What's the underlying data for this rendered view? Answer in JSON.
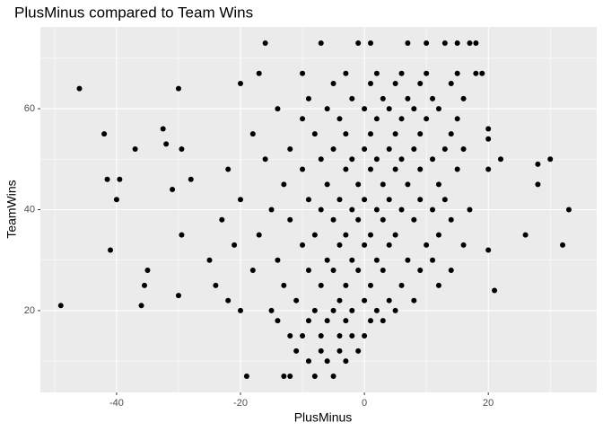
{
  "chart_data": {
    "type": "scatter",
    "title": "PlusMinus compared to Team Wins",
    "x_label": "PlusMinus",
    "y_label": "TeamWins",
    "color": "#000000",
    "xlim": [
      -52.3,
      37.5
    ],
    "ylim": [
      3.8,
      76.2
    ],
    "xticks": [
      -40,
      -20,
      0,
      20
    ],
    "yticks": [
      20,
      40,
      60
    ],
    "x_minor_breaks": [
      -50,
      -30,
      -10,
      10,
      30
    ],
    "y_minor_breaks": [
      10,
      30,
      50,
      70
    ],
    "grid": true,
    "panel_color": "#ebebeb",
    "x": [
      -49,
      -46,
      -42,
      -41.5,
      -41,
      -40,
      -39.5,
      -37,
      -36,
      -35.5,
      -35,
      -32.5,
      -32,
      -31,
      -30,
      -30,
      -29.5,
      -29.5,
      -28,
      -16,
      -7,
      -1,
      1,
      7,
      10,
      13,
      15,
      17,
      18,
      19,
      20,
      20,
      20,
      20,
      22,
      21,
      26,
      28,
      28,
      30,
      32,
      33,
      -13,
      -12,
      -8,
      -5,
      -19,
      -10,
      -7,
      -4,
      -2,
      0,
      -12,
      -9,
      -6,
      -3,
      1,
      -14,
      3,
      -20,
      -8,
      -5,
      -2,
      2,
      5,
      -15,
      -22,
      -11,
      -4,
      0,
      4,
      8,
      -24,
      -13,
      -7,
      -3,
      1,
      6,
      12,
      -18,
      -9,
      -5,
      -1,
      3,
      9,
      14,
      -25,
      -14,
      -6,
      -2,
      2,
      7,
      11,
      -21,
      -10,
      -4,
      0,
      4,
      10,
      16,
      -17,
      -8,
      -3,
      1,
      5,
      12,
      -23,
      -12,
      -5,
      -1,
      3,
      8,
      14,
      -15,
      -7,
      -2,
      2,
      6,
      11,
      17,
      -20,
      -9,
      -4,
      0,
      4,
      9,
      13,
      -13,
      -6,
      -1,
      3,
      7,
      12,
      -22,
      -10,
      -3,
      1,
      5,
      9,
      15,
      -16,
      -7,
      -2,
      2,
      6,
      11,
      -12,
      -5,
      0,
      4,
      8,
      13,
      16,
      -18,
      -8,
      -3,
      1,
      5,
      9,
      14,
      -10,
      -4,
      2,
      6,
      10,
      15,
      -14,
      -6,
      0,
      4,
      8,
      12,
      -9,
      -2,
      3,
      7,
      11,
      16,
      -20,
      -5,
      1,
      5,
      9,
      14,
      -17,
      -10,
      -3,
      2,
      6,
      10,
      15,
      18,
      -9,
      -6,
      -3,
      -11,
      -7,
      -4,
      -1
    ],
    "y": [
      21,
      64,
      55,
      46,
      32,
      42,
      46,
      52,
      21,
      25,
      28,
      56,
      53,
      44,
      64,
      23,
      52,
      35,
      46,
      73,
      73,
      73,
      73,
      73,
      73,
      73,
      73,
      73,
      73,
      67,
      56,
      54,
      32,
      48,
      50,
      24,
      35,
      49,
      45,
      50,
      33,
      40,
      7,
      7,
      7,
      7,
      7,
      15,
      15,
      15,
      15,
      15,
      15,
      18,
      18,
      18,
      18,
      18,
      18,
      20,
      20,
      20,
      20,
      20,
      20,
      20,
      22,
      22,
      22,
      22,
      22,
      22,
      25,
      25,
      25,
      25,
      25,
      25,
      25,
      28,
      28,
      28,
      28,
      28,
      28,
      28,
      30,
      30,
      30,
      30,
      30,
      30,
      30,
      33,
      33,
      33,
      33,
      33,
      33,
      33,
      35,
      35,
      35,
      35,
      35,
      35,
      38,
      38,
      38,
      38,
      38,
      38,
      38,
      40,
      40,
      40,
      40,
      40,
      40,
      40,
      42,
      42,
      42,
      42,
      42,
      42,
      42,
      45,
      45,
      45,
      45,
      45,
      45,
      48,
      48,
      48,
      48,
      48,
      48,
      48,
      50,
      50,
      50,
      50,
      50,
      50,
      52,
      52,
      52,
      52,
      52,
      52,
      52,
      55,
      55,
      55,
      55,
      55,
      55,
      55,
      58,
      58,
      58,
      58,
      58,
      58,
      60,
      60,
      60,
      60,
      60,
      60,
      62,
      62,
      62,
      62,
      62,
      62,
      65,
      65,
      65,
      65,
      65,
      65,
      67,
      67,
      67,
      67,
      67,
      67,
      67,
      67,
      10,
      10,
      10,
      12,
      12,
      12,
      12
    ]
  }
}
